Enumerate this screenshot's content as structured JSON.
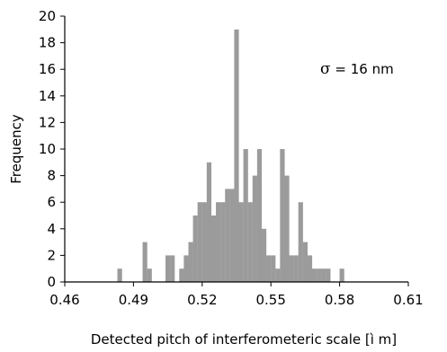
{
  "chart_data": {
    "type": "bar",
    "title": "",
    "xlabel": "Detected pitch of interferometeric scale [ì m]",
    "ylabel": "Frequency",
    "xlim": [
      0.46,
      0.61
    ],
    "ylim": [
      0,
      20
    ],
    "xticks": [
      "0.46",
      "0.49",
      "0.52",
      "0.55",
      "0.58",
      "0.61"
    ],
    "yticks": [
      "0",
      "2",
      "4",
      "6",
      "8",
      "10",
      "12",
      "14",
      "16",
      "18",
      "20"
    ],
    "grid": false,
    "annotation": {
      "symbol": "σ",
      "text": " = 16 nm"
    },
    "bar_color": "#9b9b9b",
    "x": [
      0.484,
      0.495,
      0.497,
      0.505,
      0.507,
      0.511,
      0.513,
      0.515,
      0.517,
      0.519,
      0.521,
      0.523,
      0.525,
      0.527,
      0.529,
      0.531,
      0.533,
      0.535,
      0.537,
      0.539,
      0.541,
      0.543,
      0.545,
      0.547,
      0.549,
      0.551,
      0.553,
      0.555,
      0.557,
      0.559,
      0.561,
      0.563,
      0.565,
      0.567,
      0.569,
      0.571,
      0.573,
      0.575,
      0.579,
      0.581
    ],
    "values": [
      1,
      3,
      1,
      2,
      2,
      1,
      2,
      3,
      5,
      6,
      6,
      9,
      5,
      6,
      6,
      7,
      7,
      19,
      6,
      10,
      6,
      8,
      10,
      4,
      2,
      2,
      1,
      10,
      8,
      2,
      2,
      6,
      3,
      2,
      1,
      1,
      1,
      1,
      0,
      1
    ]
  }
}
